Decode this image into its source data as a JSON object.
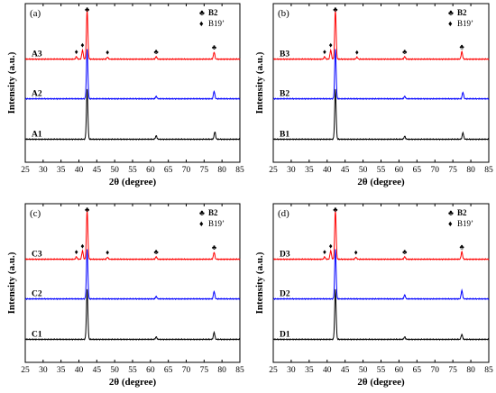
{
  "colors": {
    "A1": "#000000",
    "A2": "#0000ff",
    "A3": "#ff0000",
    "frame": "#000000",
    "background": "#ffffff"
  },
  "legend_items": [
    {
      "symbol": "♣",
      "label": "B2"
    },
    {
      "symbol": "♦",
      "label": "B19’"
    }
  ],
  "chart_data": [
    {
      "type": "line",
      "panel_label": "(a)",
      "xlabel": "2θ (degree)",
      "ylabel": "Intensity (a.u.)",
      "xlim": [
        25,
        85
      ],
      "xticks": [
        25,
        30,
        35,
        40,
        45,
        50,
        55,
        60,
        65,
        70,
        75,
        80,
        85
      ],
      "legend_position": "top-right",
      "series": [
        {
          "name": "A1",
          "color": "#000000",
          "peaks": [
            {
              "x": 42.3,
              "h": 1.0
            },
            {
              "x": 61.6,
              "h": 0.07
            },
            {
              "x": 78.0,
              "h": 0.15
            }
          ]
        },
        {
          "name": "A2",
          "color": "#0000ff",
          "peaks": [
            {
              "x": 42.3,
              "h": 1.0
            },
            {
              "x": 61.6,
              "h": 0.05
            },
            {
              "x": 77.8,
              "h": 0.15
            }
          ]
        },
        {
          "name": "A3",
          "color": "#ff0000",
          "peaks": [
            {
              "x": 39.3,
              "h": 0.05
            },
            {
              "x": 41.0,
              "h": 0.18
            },
            {
              "x": 42.3,
              "h": 1.0
            },
            {
              "x": 48.0,
              "h": 0.04
            },
            {
              "x": 61.6,
              "h": 0.05
            },
            {
              "x": 77.8,
              "h": 0.14
            }
          ]
        }
      ],
      "annotations": [
        {
          "x": 39.3,
          "symbol": "♦"
        },
        {
          "x": 41.0,
          "symbol": "♦"
        },
        {
          "x": 42.3,
          "symbol": "♣"
        },
        {
          "x": 48.0,
          "symbol": "♦"
        },
        {
          "x": 61.6,
          "symbol": "♣"
        },
        {
          "x": 77.8,
          "symbol": "♣"
        }
      ]
    },
    {
      "type": "line",
      "panel_label": "(b)",
      "xlabel": "2θ (degree)",
      "ylabel": "Intensity (a.u.)",
      "xlim": [
        25,
        85
      ],
      "xticks": [
        25,
        30,
        35,
        40,
        45,
        50,
        55,
        60,
        65,
        70,
        75,
        80,
        85
      ],
      "legend_position": "top-right",
      "series": [
        {
          "name": "B1",
          "color": "#000000",
          "peaks": [
            {
              "x": 42.3,
              "h": 1.0
            },
            {
              "x": 61.6,
              "h": 0.06
            },
            {
              "x": 77.8,
              "h": 0.13
            }
          ]
        },
        {
          "name": "B2",
          "color": "#0000ff",
          "peaks": [
            {
              "x": 42.3,
              "h": 1.0
            },
            {
              "x": 61.6,
              "h": 0.05
            },
            {
              "x": 77.8,
              "h": 0.13
            }
          ]
        },
        {
          "name": "B3",
          "color": "#ff0000",
          "peaks": [
            {
              "x": 39.3,
              "h": 0.05
            },
            {
              "x": 41.0,
              "h": 0.18
            },
            {
              "x": 42.3,
              "h": 1.0
            },
            {
              "x": 48.3,
              "h": 0.04
            },
            {
              "x": 61.6,
              "h": 0.05
            },
            {
              "x": 77.5,
              "h": 0.15
            }
          ]
        }
      ],
      "annotations": [
        {
          "x": 39.3,
          "symbol": "♦"
        },
        {
          "x": 41.0,
          "symbol": "♦"
        },
        {
          "x": 42.3,
          "symbol": "♣"
        },
        {
          "x": 48.3,
          "symbol": "♦"
        },
        {
          "x": 61.6,
          "symbol": "♣"
        },
        {
          "x": 77.5,
          "symbol": "♣"
        }
      ]
    },
    {
      "type": "line",
      "panel_label": "(c)",
      "xlabel": "2θ (degree)",
      "ylabel": "Intensity (a.u.)",
      "xlim": [
        25,
        85
      ],
      "xticks": [
        25,
        30,
        35,
        40,
        45,
        50,
        55,
        60,
        65,
        70,
        75,
        80,
        85
      ],
      "legend_position": "top-right",
      "series": [
        {
          "name": "C1",
          "color": "#000000",
          "peaks": [
            {
              "x": 42.3,
              "h": 1.0
            },
            {
              "x": 61.6,
              "h": 0.05
            },
            {
              "x": 77.8,
              "h": 0.14
            }
          ]
        },
        {
          "name": "C2",
          "color": "#0000ff",
          "peaks": [
            {
              "x": 42.3,
              "h": 1.0
            },
            {
              "x": 61.6,
              "h": 0.05
            },
            {
              "x": 77.8,
              "h": 0.15
            }
          ]
        },
        {
          "name": "C3",
          "color": "#ff0000",
          "peaks": [
            {
              "x": 39.3,
              "h": 0.05
            },
            {
              "x": 41.0,
              "h": 0.17
            },
            {
              "x": 42.3,
              "h": 1.0
            },
            {
              "x": 48.0,
              "h": 0.04
            },
            {
              "x": 61.6,
              "h": 0.05
            },
            {
              "x": 77.8,
              "h": 0.14
            }
          ]
        }
      ],
      "annotations": [
        {
          "x": 39.3,
          "symbol": "♦"
        },
        {
          "x": 41.0,
          "symbol": "♦"
        },
        {
          "x": 42.3,
          "symbol": "♣"
        },
        {
          "x": 48.0,
          "symbol": "♦"
        },
        {
          "x": 61.6,
          "symbol": "♣"
        },
        {
          "x": 77.8,
          "symbol": "♣"
        }
      ]
    },
    {
      "type": "line",
      "panel_label": "(d)",
      "xlabel": "2θ (degree)",
      "ylabel": "Intensity (a.u.)",
      "xlim": [
        25,
        85
      ],
      "xticks": [
        25,
        30,
        35,
        40,
        45,
        50,
        55,
        60,
        65,
        70,
        75,
        80,
        85
      ],
      "legend_position": "top-right",
      "series": [
        {
          "name": "D1",
          "color": "#000000",
          "peaks": [
            {
              "x": 42.3,
              "h": 1.0
            },
            {
              "x": 61.6,
              "h": 0.05
            },
            {
              "x": 77.5,
              "h": 0.1
            }
          ]
        },
        {
          "name": "D2",
          "color": "#0000ff",
          "peaks": [
            {
              "x": 42.3,
              "h": 1.0
            },
            {
              "x": 61.6,
              "h": 0.08
            },
            {
              "x": 77.5,
              "h": 0.17
            }
          ]
        },
        {
          "name": "D3",
          "color": "#ff0000",
          "peaks": [
            {
              "x": 39.3,
              "h": 0.05
            },
            {
              "x": 41.0,
              "h": 0.17
            },
            {
              "x": 42.3,
              "h": 1.0
            },
            {
              "x": 48.0,
              "h": 0.04
            },
            {
              "x": 61.6,
              "h": 0.05
            },
            {
              "x": 77.5,
              "h": 0.15
            }
          ]
        }
      ],
      "annotations": [
        {
          "x": 39.3,
          "symbol": "♦"
        },
        {
          "x": 41.0,
          "symbol": "♦"
        },
        {
          "x": 42.3,
          "symbol": "♣"
        },
        {
          "x": 48.0,
          "symbol": "♦"
        },
        {
          "x": 61.6,
          "symbol": "♣"
        },
        {
          "x": 77.5,
          "symbol": "♣"
        }
      ]
    }
  ]
}
